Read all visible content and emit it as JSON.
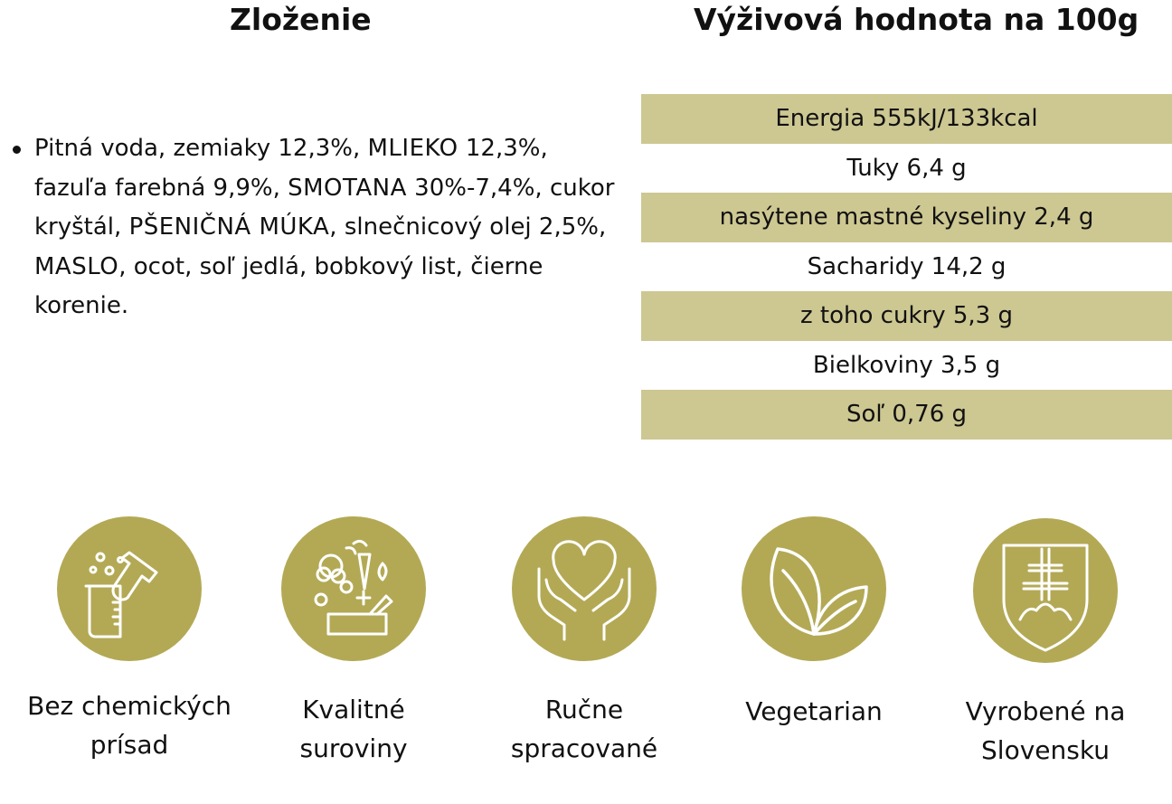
{
  "headings": {
    "ingredients": "Zloženie",
    "nutrition": "Výživová hodnota na 100g"
  },
  "ingredients": {
    "parts": [
      {
        "text": "Pitná voda, zemiaky 12,3%, ",
        "allergen": false
      },
      {
        "text": "MLIEKO",
        "allergen": true
      },
      {
        "text": " 12,3%, fazuľa farebná 9,9%, ",
        "allergen": false
      },
      {
        "text": "SMOTANA",
        "allergen": true
      },
      {
        "text": " 30%-7,4%, cukor kryštál, ",
        "allergen": false
      },
      {
        "text": "PŠENIČNÁ MÚKA",
        "allergen": true
      },
      {
        "text": ", slnečnicový olej 2,5%, ",
        "allergen": false
      },
      {
        "text": "MASLO",
        "allergen": true
      },
      {
        "text": ", ocot, soľ jedlá, bobkový list, čierne korenie.",
        "allergen": false
      }
    ]
  },
  "nutrition": [
    {
      "label": "Energia 555kJ/133kcal",
      "shaded": true
    },
    {
      "label": "Tuky 6,4 g",
      "shaded": false
    },
    {
      "label": "nasýtene mastné kyseliny 2,4 g",
      "shaded": true
    },
    {
      "label": "Sacharidy 14,2 g",
      "shaded": false
    },
    {
      "label": "z toho cukry 5,3 g",
      "shaded": true
    },
    {
      "label": "Bielkoviny 3,5 g",
      "shaded": false
    },
    {
      "label": "Soľ 0,76 g",
      "shaded": true
    }
  ],
  "features": [
    {
      "icon": "lab-flask-icon",
      "label_line1": "Bez chemických",
      "label_line2": "prísad"
    },
    {
      "icon": "vegetables-icon",
      "label_line1": "Kvalitné",
      "label_line2": "suroviny"
    },
    {
      "icon": "heart-in-hands-icon",
      "label_line1": "Ručne",
      "label_line2": "spracované"
    },
    {
      "icon": "leaves-icon",
      "label_line1": "Vegetarian",
      "label_line2": ""
    },
    {
      "icon": "slovak-shield-icon",
      "label_line1": "Vyrobené na",
      "label_line2": "Slovensku"
    }
  ],
  "colors": {
    "table_shade": "#cdc792",
    "icon_circle": "#b3a955"
  }
}
